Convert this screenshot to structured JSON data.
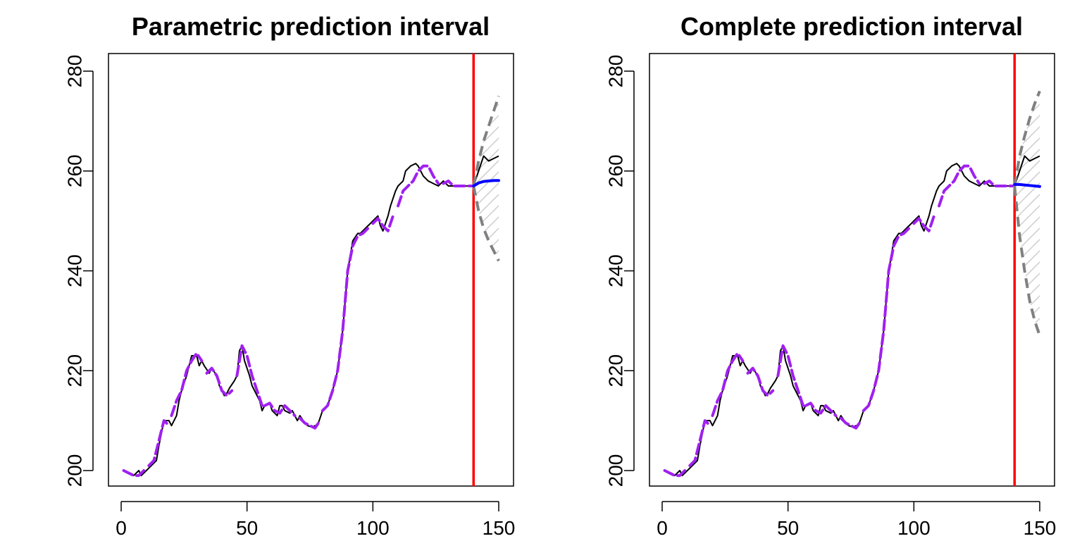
{
  "colors": {
    "observed": "#000000",
    "fitted": "#A020F0",
    "forecast": "#0000FF",
    "interval": "#808080",
    "origin": "#FF0000",
    "hatch": "#CCCCCC"
  },
  "chart_data": [
    {
      "type": "line",
      "title": "Parametric prediction interval",
      "xlabel": "",
      "ylabel": "",
      "xlim": [
        0,
        150
      ],
      "ylim": [
        197,
        283
      ],
      "xticks": [
        0,
        50,
        100,
        150
      ],
      "yticks": [
        200,
        220,
        240,
        260,
        280
      ],
      "grid": false,
      "forecast_origin": 140,
      "series": [
        {
          "role": "observed",
          "x": [
            1,
            3,
            5,
            7,
            8,
            10,
            12,
            14,
            15,
            17,
            19,
            20,
            22,
            23,
            24,
            26,
            27,
            28,
            30,
            31,
            32,
            33,
            35,
            36,
            38,
            39,
            41,
            42,
            43,
            45,
            46,
            47,
            48,
            49,
            51,
            52,
            54,
            55,
            56,
            57,
            59,
            60,
            62,
            63,
            64,
            65,
            67,
            68,
            70,
            71,
            73,
            74,
            76,
            77,
            78,
            80,
            82,
            84,
            86,
            88,
            90,
            92,
            94,
            95,
            96,
            97,
            99,
            100,
            102,
            103,
            104,
            106,
            107,
            109,
            110,
            112,
            113,
            115,
            117,
            118,
            119,
            120,
            122,
            124,
            126,
            128,
            130,
            132,
            134,
            136,
            138,
            140,
            142,
            144,
            146,
            148,
            150
          ],
          "y": [
            200,
            199.5,
            199,
            200,
            199,
            200,
            201,
            202,
            205,
            210,
            210,
            209,
            211,
            214,
            216,
            219,
            221,
            223,
            223,
            221,
            222,
            221,
            219.5,
            220.5,
            219,
            217,
            215,
            215.5,
            216.5,
            218,
            219,
            224,
            225,
            222,
            219,
            217,
            215,
            214,
            212,
            213,
            213.5,
            212,
            211,
            213,
            213,
            212,
            211.5,
            212,
            210,
            211,
            209.5,
            209,
            208.7,
            209,
            209,
            212,
            213,
            216,
            220,
            228,
            240,
            246,
            247.5,
            247.5,
            248,
            248.5,
            249.5,
            250,
            251,
            249,
            248,
            251,
            253,
            256,
            257,
            258,
            260,
            261,
            261.5,
            261,
            260,
            259,
            258,
            257.5,
            257,
            258,
            257,
            257,
            257,
            257,
            257,
            257,
            260,
            263,
            262,
            262.5,
            263
          ]
        },
        {
          "role": "fitted",
          "segments": [
            {
              "x": [
                1,
                3,
                5,
                7,
                9
              ],
              "y": [
                200,
                199.5,
                199,
                199,
                200
              ]
            },
            {
              "x": [
                11,
                13,
                15,
                17,
                19
              ],
              "y": [
                201,
                202,
                206,
                210,
                209
              ]
            },
            {
              "x": [
                20,
                22,
                24,
                26,
                28,
                30,
                32
              ],
              "y": [
                211,
                214,
                216,
                220,
                222,
                223.5,
                222
              ]
            },
            {
              "x": [
                34,
                36,
                38,
                40,
                42,
                44
              ],
              "y": [
                219.5,
                220.5,
                219,
                216,
                215,
                216
              ]
            },
            {
              "x": [
                46,
                48,
                50,
                52,
                54,
                56
              ],
              "y": [
                219,
                225,
                223,
                219,
                216,
                213
              ]
            },
            {
              "x": [
                57,
                59,
                61,
                63,
                65,
                67,
                69
              ],
              "y": [
                213,
                213.5,
                212,
                211.5,
                213,
                212,
                211
              ]
            },
            {
              "x": [
                71,
                73,
                75,
                77,
                79
              ],
              "y": [
                210.5,
                209.5,
                209,
                208.5,
                210
              ]
            },
            {
              "x": [
                80,
                82,
                84,
                86,
                88,
                90,
                92,
                94,
                96,
                98
              ],
              "y": [
                212,
                213,
                216,
                220,
                228,
                240,
                245,
                247,
                247.5,
                248.5
              ]
            },
            {
              "x": [
                100,
                102,
                104,
                106,
                108
              ],
              "y": [
                249.5,
                250.5,
                249,
                248,
                251
              ]
            },
            {
              "x": [
                110,
                112,
                114,
                116,
                118,
                120,
                122,
                124,
                126
              ],
              "y": [
                253,
                256,
                257,
                258,
                260,
                261,
                261,
                259,
                257.5
              ]
            },
            {
              "x": [
                128,
                130,
                132,
                134,
                136,
                138,
                140
              ],
              "y": [
                257.5,
                258,
                257,
                257,
                257,
                257,
                257
              ]
            }
          ]
        },
        {
          "role": "forecast",
          "x": [
            140,
            142,
            144,
            146,
            148,
            150
          ],
          "y": [
            257,
            257.6,
            257.9,
            258,
            258.1,
            258.1
          ]
        },
        {
          "role": "upper",
          "x": [
            140,
            142,
            144,
            146,
            148,
            150
          ],
          "y": [
            257,
            262,
            266,
            269,
            272,
            275
          ]
        },
        {
          "role": "lower",
          "x": [
            140,
            142,
            144,
            146,
            148,
            150
          ],
          "y": [
            257,
            252,
            248.5,
            246,
            244,
            242
          ]
        }
      ]
    },
    {
      "type": "line",
      "title": "Complete prediction interval",
      "xlabel": "",
      "ylabel": "",
      "xlim": [
        0,
        150
      ],
      "ylim": [
        197,
        283
      ],
      "xticks": [
        0,
        50,
        100,
        150
      ],
      "yticks": [
        200,
        220,
        240,
        260,
        280
      ],
      "grid": false,
      "forecast_origin": 140,
      "series": [
        {
          "role": "observed",
          "x": [
            1,
            3,
            5,
            7,
            8,
            10,
            12,
            14,
            15,
            17,
            19,
            20,
            22,
            23,
            24,
            26,
            27,
            28,
            30,
            31,
            32,
            33,
            35,
            36,
            38,
            39,
            41,
            42,
            43,
            45,
            46,
            47,
            48,
            49,
            51,
            52,
            54,
            55,
            56,
            57,
            59,
            60,
            62,
            63,
            64,
            65,
            67,
            68,
            70,
            71,
            73,
            74,
            76,
            77,
            78,
            80,
            82,
            84,
            86,
            88,
            90,
            92,
            94,
            95,
            96,
            97,
            99,
            100,
            102,
            103,
            104,
            106,
            107,
            109,
            110,
            112,
            113,
            115,
            117,
            118,
            119,
            120,
            122,
            124,
            126,
            128,
            130,
            132,
            134,
            136,
            138,
            140,
            142,
            144,
            146,
            148,
            150
          ],
          "y": [
            200,
            199.5,
            199,
            200,
            199,
            200,
            201,
            202,
            205,
            210,
            210,
            209,
            211,
            214,
            216,
            219,
            221,
            223,
            223,
            221,
            222,
            221,
            219.5,
            220.5,
            219,
            217,
            215,
            215.5,
            216.5,
            218,
            219,
            224,
            225,
            222,
            219,
            217,
            215,
            214,
            212,
            213,
            213.5,
            212,
            211,
            213,
            213,
            212,
            211.5,
            212,
            210,
            211,
            209.5,
            209,
            208.7,
            209,
            209,
            212,
            213,
            216,
            220,
            228,
            240,
            246,
            247.5,
            247.5,
            248,
            248.5,
            249.5,
            250,
            251,
            249,
            248,
            251,
            253,
            256,
            257,
            258,
            260,
            261,
            261.5,
            261,
            260,
            259,
            258,
            257.5,
            257,
            258,
            257,
            257,
            257,
            257,
            257,
            257,
            260,
            263,
            262,
            262.5,
            263
          ]
        },
        {
          "role": "fitted",
          "segments": [
            {
              "x": [
                1,
                3,
                5,
                7,
                9
              ],
              "y": [
                200,
                199.5,
                199,
                199,
                200
              ]
            },
            {
              "x": [
                11,
                13,
                15,
                17,
                19
              ],
              "y": [
                201,
                202,
                206,
                210,
                209
              ]
            },
            {
              "x": [
                20,
                22,
                24,
                26,
                28,
                30,
                32
              ],
              "y": [
                211,
                214,
                216,
                220,
                222,
                223.5,
                222
              ]
            },
            {
              "x": [
                34,
                36,
                38,
                40,
                42,
                44
              ],
              "y": [
                219.5,
                220.5,
                219,
                216,
                215,
                216
              ]
            },
            {
              "x": [
                46,
                48,
                50,
                52,
                54,
                56
              ],
              "y": [
                219,
                225,
                223,
                219,
                216,
                213
              ]
            },
            {
              "x": [
                57,
                59,
                61,
                63,
                65,
                67,
                69
              ],
              "y": [
                213,
                213.5,
                212,
                211.5,
                213,
                212,
                211
              ]
            },
            {
              "x": [
                71,
                73,
                75,
                77,
                79
              ],
              "y": [
                210.5,
                209.5,
                209,
                208.5,
                210
              ]
            },
            {
              "x": [
                80,
                82,
                84,
                86,
                88,
                90,
                92,
                94,
                96,
                98
              ],
              "y": [
                212,
                213,
                216,
                220,
                228,
                240,
                245,
                247,
                247.5,
                248.5
              ]
            },
            {
              "x": [
                100,
                102,
                104,
                106,
                108
              ],
              "y": [
                249.5,
                250.5,
                249,
                248,
                251
              ]
            },
            {
              "x": [
                110,
                112,
                114,
                116,
                118,
                120,
                122,
                124,
                126
              ],
              "y": [
                253,
                256,
                257,
                258,
                260,
                261,
                261,
                259,
                257.5
              ]
            },
            {
              "x": [
                128,
                130,
                132,
                134,
                136,
                138,
                140
              ],
              "y": [
                257.5,
                258,
                257,
                257,
                257,
                257,
                257
              ]
            }
          ]
        },
        {
          "role": "forecast",
          "x": [
            140,
            142,
            144,
            146,
            148,
            150
          ],
          "y": [
            257.3,
            257.3,
            257.2,
            257.1,
            257,
            256.9
          ]
        },
        {
          "role": "upper",
          "x": [
            140,
            142,
            144,
            146,
            148,
            150
          ],
          "y": [
            257,
            263,
            267,
            270.5,
            273.5,
            276
          ]
        },
        {
          "role": "lower",
          "x": [
            140,
            142,
            144,
            146,
            148,
            150
          ],
          "y": [
            257,
            247,
            240,
            234,
            230,
            227
          ]
        }
      ]
    }
  ]
}
